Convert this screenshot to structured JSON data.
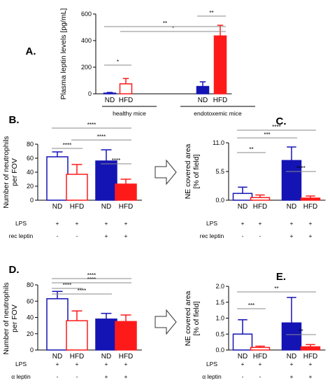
{
  "colors": {
    "nd": "#1414b4",
    "hfd": "#ff1a1a",
    "sig_line": "#888888",
    "axis": "#000000"
  },
  "chart_data": [
    {
      "panel": "A.",
      "type": "bar",
      "ylabel": "Plasma leptin levels [pg/mL]",
      "ylim": [
        0,
        600
      ],
      "yticks": [
        "0",
        "200",
        "400",
        "600"
      ],
      "categories": [
        "ND",
        "HFD",
        "ND",
        "HFD"
      ],
      "groups": [
        "healthy mice",
        "endotoxemic mice"
      ],
      "values": [
        5,
        75,
        55,
        435
      ],
      "errors": [
        5,
        40,
        35,
        80
      ],
      "filled": [
        false,
        false,
        true,
        true
      ],
      "brackets": [
        {
          "from": 0,
          "to": 1,
          "label": "*"
        },
        {
          "from": 2,
          "to": 3,
          "label": "**"
        },
        {
          "from": 1,
          "to": 3,
          "label": "*"
        },
        {
          "from": 0,
          "to": 3,
          "label": "**"
        }
      ]
    },
    {
      "panel": "B.",
      "type": "bar",
      "ylabel": "Number of neutrophils per FOV",
      "ylim": [
        0,
        80
      ],
      "yticks": [
        "0",
        "20",
        "40",
        "60",
        "80"
      ],
      "categories": [
        "ND",
        "HFD",
        "ND",
        "HFD"
      ],
      "values": [
        62,
        37,
        56,
        23
      ],
      "errors": [
        7,
        14,
        16,
        7
      ],
      "filled": [
        false,
        false,
        true,
        true
      ],
      "conditions": [
        {
          "label": "LPS",
          "marks": [
            "+",
            "+",
            "+",
            "+"
          ]
        },
        {
          "label": "rec leptin",
          "marks": [
            "-",
            "-",
            "+",
            "+"
          ]
        }
      ],
      "brackets": [
        {
          "from": 0,
          "to": 1,
          "label": "****"
        },
        {
          "from": 2,
          "to": 3,
          "label": "****"
        },
        {
          "from": 1,
          "to": 3,
          "label": "****"
        },
        {
          "from": 0,
          "to": 3,
          "label": "****"
        }
      ]
    },
    {
      "panel": "C.",
      "type": "bar",
      "ylabel": "NE covered area [% of field]",
      "ylim": [
        0,
        11
      ],
      "yticks": [
        "0.0",
        "5.5",
        "11.0"
      ],
      "categories": [
        "ND",
        "HFD",
        "ND",
        "HFD"
      ],
      "values": [
        1.3,
        0.5,
        7.6,
        0.4
      ],
      "errors": [
        1.2,
        0.5,
        2.6,
        0.4
      ],
      "filled": [
        false,
        false,
        true,
        true
      ],
      "conditions": [
        {
          "label": "LPS",
          "marks": [
            "+",
            "+",
            "+",
            "+"
          ]
        },
        {
          "label": "rec leptin",
          "marks": [
            "-",
            "-",
            "+",
            "+"
          ]
        }
      ],
      "brackets": [
        {
          "from": 0,
          "to": 1,
          "label": "**"
        },
        {
          "from": 2,
          "to": 3,
          "label": "****"
        },
        {
          "from": 0,
          "to": 2,
          "label": "***"
        },
        {
          "from": 0,
          "to": 3,
          "label": "****"
        }
      ]
    },
    {
      "panel": "D.",
      "type": "bar",
      "ylabel": "Number of neutrophils per FOV",
      "ylim": [
        0,
        80
      ],
      "yticks": [
        "0",
        "20",
        "40",
        "60",
        "80"
      ],
      "categories": [
        "ND",
        "HFD",
        "ND",
        "HFD"
      ],
      "values": [
        63,
        36,
        38,
        35
      ],
      "errors": [
        9,
        12,
        7,
        8
      ],
      "filled": [
        false,
        false,
        true,
        true
      ],
      "conditions": [
        {
          "label": "LPS",
          "marks": [
            "+",
            "+",
            "+",
            "+"
          ]
        },
        {
          "label": "α leptin",
          "marks": [
            "-",
            "-",
            "+",
            "+"
          ]
        }
      ],
      "brackets": [
        {
          "from": 0,
          "to": 1,
          "label": "****"
        },
        {
          "from": 0,
          "to": 2,
          "label": "****"
        },
        {
          "from": 0,
          "to": 3,
          "label": "****"
        },
        {
          "from": 0,
          "to": 3,
          "label": "****"
        }
      ]
    },
    {
      "panel": "E.",
      "type": "bar",
      "ylabel": "NE covered area [% of field]",
      "ylim": [
        0,
        2.0
      ],
      "yticks": [
        "0.0",
        "0.5",
        "1.0",
        "1.5",
        "2.0"
      ],
      "categories": [
        "ND",
        "HFD",
        "ND",
        "HFD"
      ],
      "values": [
        0.5,
        0.08,
        0.85,
        0.1
      ],
      "errors": [
        0.45,
        0.04,
        0.8,
        0.07
      ],
      "filled": [
        false,
        false,
        true,
        true
      ],
      "conditions": [
        {
          "label": "LPS",
          "marks": [
            "+",
            "+",
            "+",
            "+"
          ]
        },
        {
          "label": "α leptin",
          "marks": [
            "-",
            "-",
            "+",
            "+"
          ]
        }
      ],
      "brackets": [
        {
          "from": 0,
          "to": 1,
          "label": "***"
        },
        {
          "from": 2,
          "to": 3,
          "label": "**"
        },
        {
          "from": 0,
          "to": 3,
          "label": "**"
        }
      ]
    }
  ]
}
